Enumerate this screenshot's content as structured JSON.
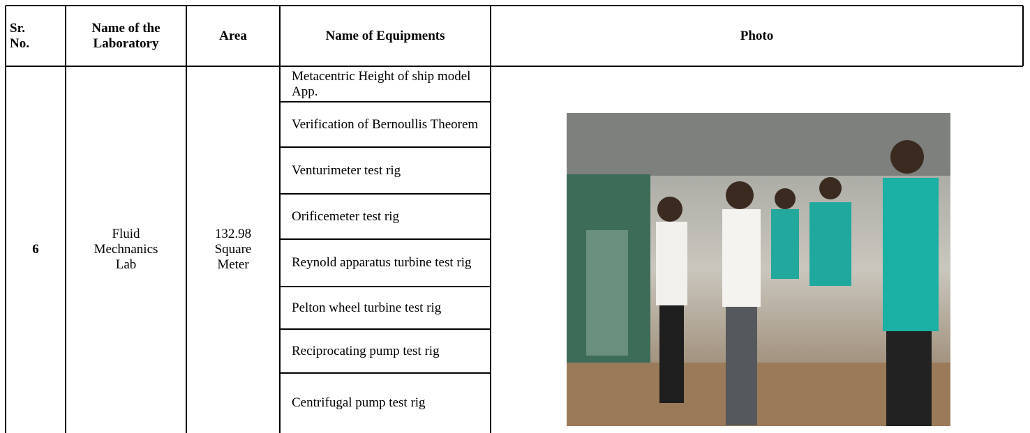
{
  "table": {
    "header": [
      "Sr. No.",
      "Name of the Laboratory",
      "Area",
      "Name of Equipments",
      "Photo"
    ],
    "row": {
      "sr_no": "6",
      "laboratory": "Fluid Mechnanics Lab",
      "area": "132.98 Square Meter",
      "equipments": [
        "Metacentric Height of ship model App.",
        "Verification of Bernoullis Theorem",
        "Venturimeter test rig",
        "Orificemeter test rig",
        "Reynold apparatus turbine test rig",
        "Pelton wheel turbine test rig",
        "Reciprocating pump test rig",
        "Centrifugal pump test rig"
      ]
    }
  }
}
